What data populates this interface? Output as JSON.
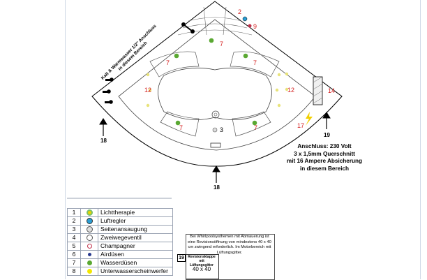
{
  "labels": {
    "n2": "2",
    "n9": "9",
    "n7a": "7",
    "n7b": "7",
    "n7c": "7",
    "n7d": "7",
    "n7e": "7",
    "n12a": "12",
    "n12b": "12",
    "n14": "14",
    "n17": "17",
    "n3": "3",
    "n19": "19",
    "n18a": "18",
    "n18b": "18"
  },
  "diagonal_note": {
    "line1": "Kalt & Warmwasser 1/2\" Anschluss",
    "line2": "in diesem Bereich"
  },
  "connection_note": {
    "line1": "Anschluss: 230 Volt",
    "line2": "3 x 1,5mm Querschnitt",
    "line3": "mit 16 Ampere Absicherung",
    "line4": "in diesem Bereich"
  },
  "legend": [
    {
      "num": "1",
      "icon": "lighttherapy-icon",
      "color": "#e6d400",
      "label": "Lichttherapie"
    },
    {
      "num": "2",
      "icon": "air-regulator-icon",
      "color": "#2a9fd6",
      "label": "Luftregler"
    },
    {
      "num": "3",
      "icon": "side-intake-icon",
      "color": "#8a8a8a",
      "label": "Seitenansaugung"
    },
    {
      "num": "4",
      "icon": "two-way-valve-icon",
      "color": "#8a8a8a",
      "label": "Zweiwegeventil"
    },
    {
      "num": "5",
      "icon": "champagne-icon",
      "color": "#c0304a",
      "label": "Champagner"
    },
    {
      "num": "6",
      "icon": "air-nozzle-icon",
      "color": "#2a3b8f",
      "label": "Airdüsen"
    },
    {
      "num": "7",
      "icon": "water-nozzle-icon",
      "color": "#5aa832",
      "label": "Wasserdüsen"
    },
    {
      "num": "8",
      "icon": "underwater-light-icon",
      "color": "#f2e600",
      "label": "Unterwasserscheinwerfer"
    }
  ],
  "revision": {
    "text": "Bei Whirlpoolsysthemen mit Abmauerung ist eine Revisionsöffnung von mindestens 40 x 40 cm zwingend erforderlich. Im Motorbereich mit Lüftungsgitter.",
    "num": "19",
    "small_title": "Revisionsklappe mit Lüftungsgitter",
    "size": "40 x 40"
  },
  "colors": {
    "jet_green": "#5aa832",
    "light_yellow": "#e8e37a",
    "number_red": "#d42020",
    "air_regulator_blue": "#2a9fd6",
    "bolt_yellow": "#f2d000"
  }
}
